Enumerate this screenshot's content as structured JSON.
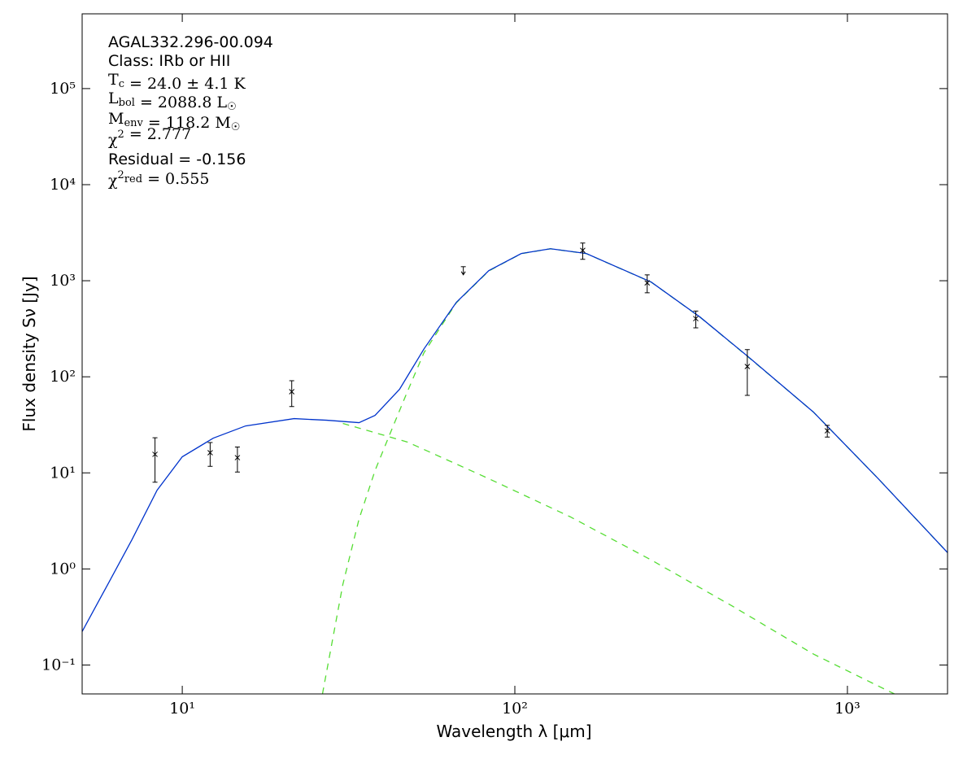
{
  "chart_data": {
    "type": "line",
    "xlabel": "Wavelength λ [μm]",
    "ylabel": "Flux density Sν [Jy]",
    "xscale": "log",
    "yscale": "log",
    "xlim": [
      5,
      2000
    ],
    "ylim": [
      0.05,
      600000
    ],
    "xticks": [
      {
        "value": 10,
        "label": "10¹"
      },
      {
        "value": 100,
        "label": "10²"
      },
      {
        "value": 1000,
        "label": "10³"
      }
    ],
    "yticks": [
      {
        "value": 0.1,
        "label": "10⁻¹"
      },
      {
        "value": 1,
        "label": "10⁰"
      },
      {
        "value": 10,
        "label": "10¹"
      },
      {
        "value": 100,
        "label": "10²"
      },
      {
        "value": 1000,
        "label": "10³"
      },
      {
        "value": 10000,
        "label": "10⁴"
      },
      {
        "value": 100000,
        "label": "10⁵"
      }
    ],
    "annotations": [
      {
        "math": false,
        "parts": [
          "AGAL332.296-00.094"
        ]
      },
      {
        "math": false,
        "parts": [
          "Class: IRb or HII"
        ]
      },
      {
        "math": true,
        "parts": [
          "T",
          {
            "sub": "c"
          },
          " = 24.0 ± 4.1 K"
        ]
      },
      {
        "math": true,
        "parts": [
          "L",
          {
            "sub": "bol"
          },
          " = 2088.8 L",
          {
            "sub": "☉"
          }
        ]
      },
      {
        "math": true,
        "parts": [
          "M",
          {
            "sub": "env"
          },
          " = 118.2 M",
          {
            "sub": "☉"
          }
        ]
      },
      {
        "math": true,
        "parts": [
          "χ",
          {
            "sup": "2"
          },
          " = 2.777"
        ]
      },
      {
        "math": false,
        "parts": [
          "Residual = -0.156"
        ]
      },
      {
        "math": true,
        "parts": [
          "χ",
          {
            "sup": "2"
          },
          {
            "sub": "red"
          },
          " = 0.555"
        ]
      }
    ],
    "series": [
      {
        "color": "#55dd33",
        "dashed": true,
        "x": [
          26.4,
          30.4,
          34,
          38,
          42.6,
          47.6,
          53.3,
          66.7,
          83.5,
          104.6,
          128,
          164,
          257,
          360,
          504,
          790,
          1238,
          2000
        ],
        "values": [
          0.05,
          0.69,
          3.3,
          10.6,
          28,
          71,
          178,
          590,
          1265,
          1915,
          2150,
          1917,
          967,
          419,
          160,
          43,
          8.7,
          1.48
        ]
      },
      {
        "color": "#55dd33",
        "dashed": true,
        "x": [
          30.4,
          47.6,
          83.5,
          146.5,
          257,
          451,
          790,
          1384
        ],
        "values": [
          32.7,
          20.9,
          8.7,
          3.5,
          1.24,
          0.41,
          0.13,
          0.05
        ]
      },
      {
        "color": "#0033cc",
        "dashed": false,
        "x": [
          5,
          5.97,
          7.06,
          8.4,
          10,
          12.4,
          15.5,
          21.7,
          27.2,
          34,
          38,
          45,
          53.3,
          66.7,
          83.5,
          104.6,
          128,
          164,
          257,
          360,
          504,
          790,
          1238,
          2000
        ],
        "values": [
          0.223,
          0.69,
          2.02,
          6.6,
          14.7,
          23,
          30.8,
          36.7,
          35.3,
          33.3,
          39.7,
          74,
          195,
          596,
          1273,
          1920,
          2154,
          1920,
          969,
          420,
          161,
          43,
          8.7,
          1.48
        ]
      }
    ],
    "observations": {
      "color": "#000000",
      "x": [
        8.28,
        12.13,
        14.65,
        21.34,
        70,
        160,
        250,
        350,
        500,
        870
      ],
      "values": [
        15.6,
        16.2,
        14.4,
        70,
        1400,
        2070,
        950,
        403,
        128,
        27.4
      ],
      "errors": [
        7.6,
        4.5,
        4.2,
        21,
        null,
        400,
        200,
        80,
        64,
        3.8
      ],
      "upper_limits": [
        false,
        false,
        false,
        false,
        true,
        false,
        false,
        false,
        false,
        false
      ]
    }
  }
}
